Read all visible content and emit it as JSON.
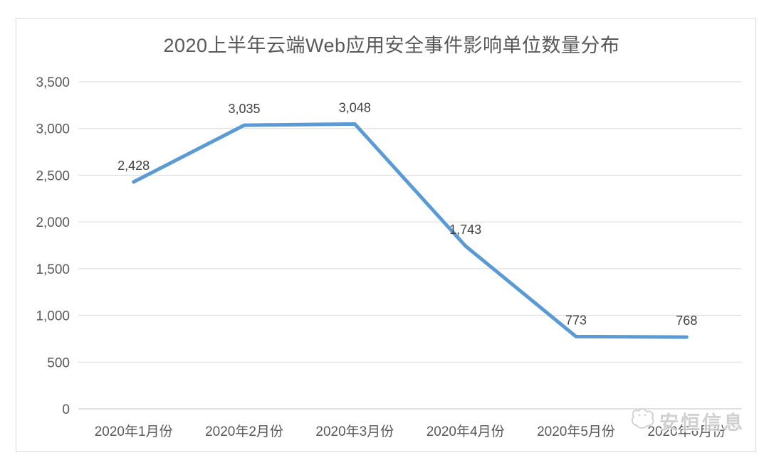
{
  "chart_data": {
    "type": "line",
    "title": "2020上半年云端Web应用安全事件影响单位数量分布",
    "categories": [
      "2020年1月份",
      "2020年2月份",
      "2020年3月份",
      "2020年4月份",
      "2020年5月份",
      "2020年6月份"
    ],
    "values": [
      2428,
      3035,
      3048,
      1743,
      773,
      768
    ],
    "data_labels": [
      "2,428",
      "3,035",
      "3,048",
      "1,743",
      "773",
      "768"
    ],
    "ylim": [
      0,
      3500
    ],
    "ytick_step": 500,
    "ytick_labels": [
      "0",
      "500",
      "1,000",
      "1,500",
      "2,000",
      "2,500",
      "3,000",
      "3,500"
    ],
    "xlabel": "",
    "ylabel": "",
    "grid": "horizontal",
    "legend": "none",
    "line_color": "#5b9bd5",
    "gridline_color": "#d9d9d9",
    "axis_line_color": "#bfbfbf",
    "title_color": "#595959",
    "tick_label_color": "#595959",
    "data_label_color": "#404040"
  },
  "watermark": {
    "text": "安恒信息"
  }
}
